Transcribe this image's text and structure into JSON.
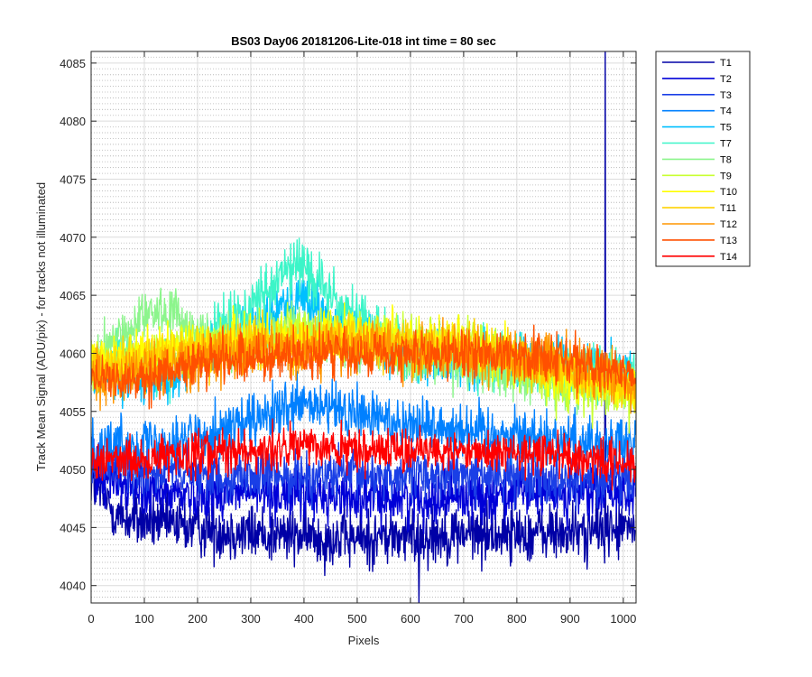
{
  "chart_data": {
    "type": "line",
    "title": "BS03 Day06 20181206-Lite-018 int time = 80 sec",
    "xlabel": "Pixels",
    "ylabel": "Track Mean Signal (ADU/pix) - for tracks not illuminated",
    "xlim": [
      0,
      1024
    ],
    "ylim": [
      4038.5,
      4086
    ],
    "xticks": [
      0,
      100,
      200,
      300,
      400,
      500,
      600,
      700,
      800,
      900,
      1000
    ],
    "yticks": [
      4040,
      4045,
      4050,
      4055,
      4060,
      4065,
      4070,
      4075,
      4080,
      4085
    ],
    "grid": "major-solid-minor-dotted",
    "legend_position": "outside-top-right",
    "x_point_count": 1024,
    "series": [
      {
        "name": "T1",
        "color": "#0000A6",
        "profile": [
          [
            0,
            4049
          ],
          [
            50,
            4046
          ],
          [
            100,
            4045.5
          ],
          [
            300,
            4044.5
          ],
          [
            500,
            4044
          ],
          [
            700,
            4044.5
          ],
          [
            900,
            4044.5
          ],
          [
            1024,
            4045
          ]
        ],
        "noise": 1.8,
        "spikes": [
          {
            "x": 966,
            "y": 4087
          },
          {
            "x": 616,
            "y": 4038.5
          }
        ]
      },
      {
        "name": "T2",
        "color": "#0000D8",
        "profile": [
          [
            0,
            4050
          ],
          [
            100,
            4048
          ],
          [
            300,
            4048
          ],
          [
            600,
            4047.5
          ],
          [
            800,
            4048
          ],
          [
            1024,
            4048
          ]
        ],
        "noise": 1.6
      },
      {
        "name": "T3",
        "color": "#1A3FE6",
        "profile": [
          [
            0,
            4050.5
          ],
          [
            200,
            4049.5
          ],
          [
            500,
            4049.5
          ],
          [
            800,
            4049.5
          ],
          [
            1024,
            4049
          ]
        ],
        "noise": 1.5
      },
      {
        "name": "T4",
        "color": "#0080FF",
        "profile": [
          [
            0,
            4052
          ],
          [
            150,
            4052.5
          ],
          [
            300,
            4054
          ],
          [
            400,
            4055.5
          ],
          [
            600,
            4054
          ],
          [
            800,
            4053
          ],
          [
            1024,
            4052
          ]
        ],
        "noise": 1.7
      },
      {
        "name": "T5",
        "color": "#00BFFF",
        "profile": [
          [
            0,
            4058
          ],
          [
            150,
            4058
          ],
          [
            300,
            4062.5
          ],
          [
            390,
            4065
          ],
          [
            470,
            4062
          ],
          [
            600,
            4060
          ],
          [
            800,
            4059
          ],
          [
            1024,
            4058
          ]
        ],
        "noise": 1.6
      },
      {
        "name": "T7",
        "color": "#3CF5C8",
        "profile": [
          [
            0,
            4059
          ],
          [
            150,
            4059
          ],
          [
            300,
            4064
          ],
          [
            390,
            4068
          ],
          [
            470,
            4064
          ],
          [
            600,
            4060
          ],
          [
            800,
            4059
          ],
          [
            1024,
            4058
          ]
        ],
        "noise": 1.7
      },
      {
        "name": "T8",
        "color": "#8CF58C",
        "profile": [
          [
            0,
            4059
          ],
          [
            100,
            4063.5
          ],
          [
            150,
            4063.5
          ],
          [
            230,
            4061
          ],
          [
            400,
            4062
          ],
          [
            600,
            4060
          ],
          [
            800,
            4058
          ],
          [
            1024,
            4057
          ]
        ],
        "noise": 1.5
      },
      {
        "name": "T9",
        "color": "#C8FF32",
        "profile": [
          [
            0,
            4059
          ],
          [
            150,
            4060
          ],
          [
            400,
            4062
          ],
          [
            700,
            4061
          ],
          [
            900,
            4057
          ],
          [
            1024,
            4056
          ]
        ],
        "noise": 1.5
      },
      {
        "name": "T10",
        "color": "#FFFF00",
        "profile": [
          [
            0,
            4059
          ],
          [
            150,
            4060.5
          ],
          [
            400,
            4061.5
          ],
          [
            700,
            4061
          ],
          [
            900,
            4058
          ],
          [
            1024,
            4057
          ]
        ],
        "noise": 1.5
      },
      {
        "name": "T11",
        "color": "#FFD200",
        "profile": [
          [
            0,
            4058.5
          ],
          [
            150,
            4060
          ],
          [
            400,
            4061
          ],
          [
            700,
            4060.5
          ],
          [
            900,
            4058.5
          ],
          [
            1024,
            4057
          ]
        ],
        "noise": 1.5
      },
      {
        "name": "T12",
        "color": "#FF9600",
        "profile": [
          [
            0,
            4058
          ],
          [
            100,
            4058.5
          ],
          [
            250,
            4060
          ],
          [
            450,
            4060.5
          ],
          [
            700,
            4060
          ],
          [
            900,
            4059
          ],
          [
            1024,
            4057
          ]
        ],
        "noise": 1.6
      },
      {
        "name": "T13",
        "color": "#FF5000",
        "profile": [
          [
            0,
            4057.5
          ],
          [
            100,
            4058
          ],
          [
            250,
            4059.5
          ],
          [
            450,
            4060
          ],
          [
            700,
            4060
          ],
          [
            900,
            4059.5
          ],
          [
            1024,
            4058
          ]
        ],
        "noise": 1.5
      },
      {
        "name": "T14",
        "color": "#FF0000",
        "profile": [
          [
            0,
            4050.5
          ],
          [
            150,
            4051
          ],
          [
            400,
            4052
          ],
          [
            600,
            4051.5
          ],
          [
            800,
            4051.5
          ],
          [
            1024,
            4050.5
          ]
        ],
        "noise": 1.3
      }
    ]
  }
}
